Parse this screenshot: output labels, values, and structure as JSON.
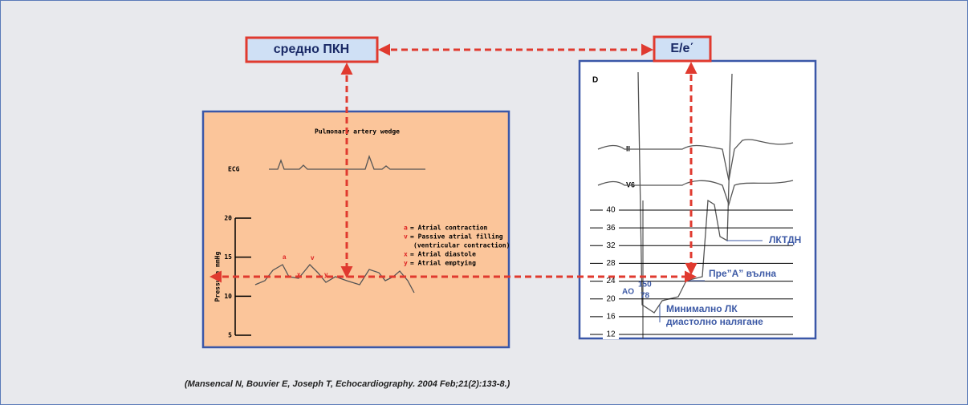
{
  "header": {
    "left_box": "средно ПКН",
    "right_box": "E/e΄"
  },
  "left_panel": {
    "title": "Pulmonary artery wedge",
    "ecg_label": "ECG",
    "axis_label": "Pressure mmHg",
    "ticks": [
      20,
      15,
      10,
      5
    ],
    "wave_labels": [
      "a",
      "v",
      "x",
      "y"
    ],
    "legend": [
      {
        "key": "a",
        "text": "= Atrial contraction"
      },
      {
        "key": "v",
        "text": "= Passive atrial filling"
      },
      {
        "key": "",
        "text": "(ventricular contraction)"
      },
      {
        "key": "x",
        "text": "= Atrial diastole"
      },
      {
        "key": "y",
        "text": "= Atrial emptying"
      }
    ]
  },
  "right_panel": {
    "panel_label": "D",
    "leads": [
      "II",
      "V6"
    ],
    "ticks": [
      40,
      36,
      32,
      28,
      24,
      20,
      16,
      12
    ],
    "annotations": [
      "ЛКТДН",
      "Пре”А” вълна",
      "Минимално ЛК",
      "диастолно налягане"
    ],
    "ao_label": "AO",
    "ao_values": [
      "150",
      "78"
    ]
  },
  "citation": "(Mansencal N, Bouvier E, Joseph T, Echocardiography. 2004 Feb;21(2):133-8.)"
}
